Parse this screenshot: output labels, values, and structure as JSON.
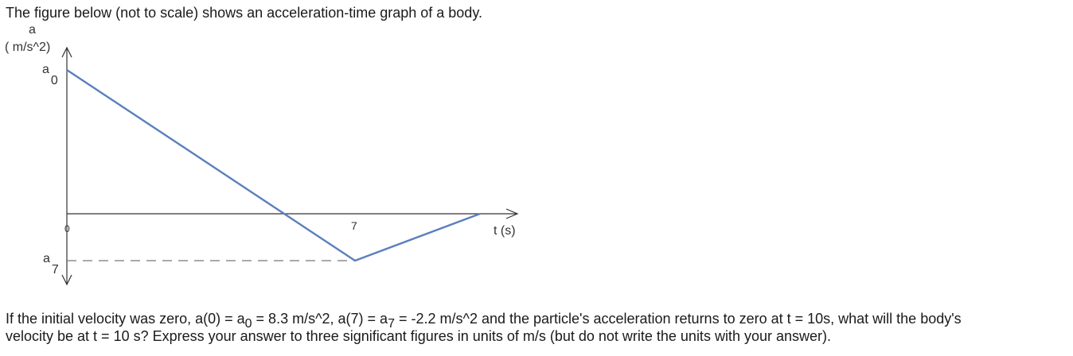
{
  "intro": "The figure below (not to scale) shows an acceleration-time graph of a body.",
  "chart_data": {
    "type": "line",
    "title": "",
    "xlabel": "t (s)",
    "ylabel_top": "a",
    "ylabel_unit": "( m/s^2)",
    "origin_label": "0",
    "x_tick_label": "7",
    "y_labels": [
      {
        "base": "a",
        "sub": "0"
      },
      {
        "base": "a",
        "sub": "7"
      }
    ],
    "series": [
      {
        "x": [
          0,
          7,
          10
        ],
        "y": [
          8.3,
          -2.2,
          0
        ]
      }
    ],
    "line_color": "#5b7fbd",
    "axis_color": "#333333",
    "dash_color": "#777777"
  },
  "question": {
    "part1": "If the initial velocity was zero, a(0) = a",
    "sub1": "0",
    "part2": " = 8.3 m/s^2, a(7) = a",
    "sub2": "7",
    "part3": " = -2.2 m/s^2 and the particle's acceleration returns to zero at t = 10s, what will the body's",
    "line2": "velocity be at t = 10 s?  Express your answer to three significant figures in units of m/s (but do not write the units with your answer)."
  }
}
